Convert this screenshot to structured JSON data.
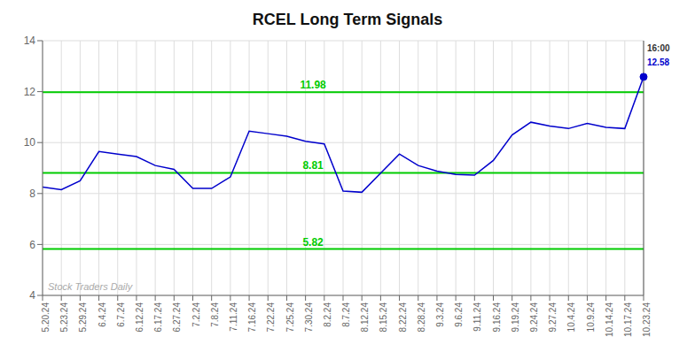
{
  "chart_data": {
    "type": "line",
    "title": "RCEL Long Term Signals",
    "categories": [
      "5.20.24",
      "5.23.24",
      "5.29.24",
      "6.4.24",
      "6.7.24",
      "6.12.24",
      "6.17.24",
      "6.27.24",
      "7.2.24",
      "7.8.24",
      "7.11.24",
      "7.16.24",
      "7.22.24",
      "7.25.24",
      "7.30.24",
      "8.2.24",
      "8.7.24",
      "8.12.24",
      "8.15.24",
      "8.22.24",
      "8.28.24",
      "9.3.24",
      "9.6.24",
      "9.11.24",
      "9.16.24",
      "9.19.24",
      "9.24.24",
      "9.27.24",
      "10.4.24",
      "10.9.24",
      "10.14.24",
      "10.17.24",
      "10.23.24"
    ],
    "values": [
      8.25,
      8.15,
      8.5,
      9.65,
      9.55,
      9.45,
      9.1,
      8.95,
      8.2,
      8.2,
      8.65,
      10.45,
      10.35,
      10.25,
      10.05,
      9.95,
      8.1,
      8.05,
      8.8,
      9.55,
      9.1,
      8.88,
      8.75,
      8.72,
      9.3,
      10.3,
      10.8,
      10.65,
      10.55,
      10.75,
      10.6,
      10.55,
      12.58
    ],
    "color": "#0000cc",
    "ylim": [
      4,
      14
    ],
    "yticks": [
      4,
      6,
      8,
      10,
      12,
      14
    ],
    "grid": true,
    "hlines": [
      {
        "value": 5.82,
        "label": "5.82",
        "color": "#00cc00"
      },
      {
        "value": 8.81,
        "label": "8.81",
        "color": "#00cc00"
      },
      {
        "value": 11.98,
        "label": "11.98",
        "color": "#00cc00"
      }
    ],
    "annotations": [
      {
        "text": "16:00",
        "color": "#333333"
      },
      {
        "text": "12.58",
        "color": "#0000cc"
      }
    ],
    "watermark": {
      "text": "Stock Traders Daily",
      "color": "#aaaaaa"
    }
  }
}
